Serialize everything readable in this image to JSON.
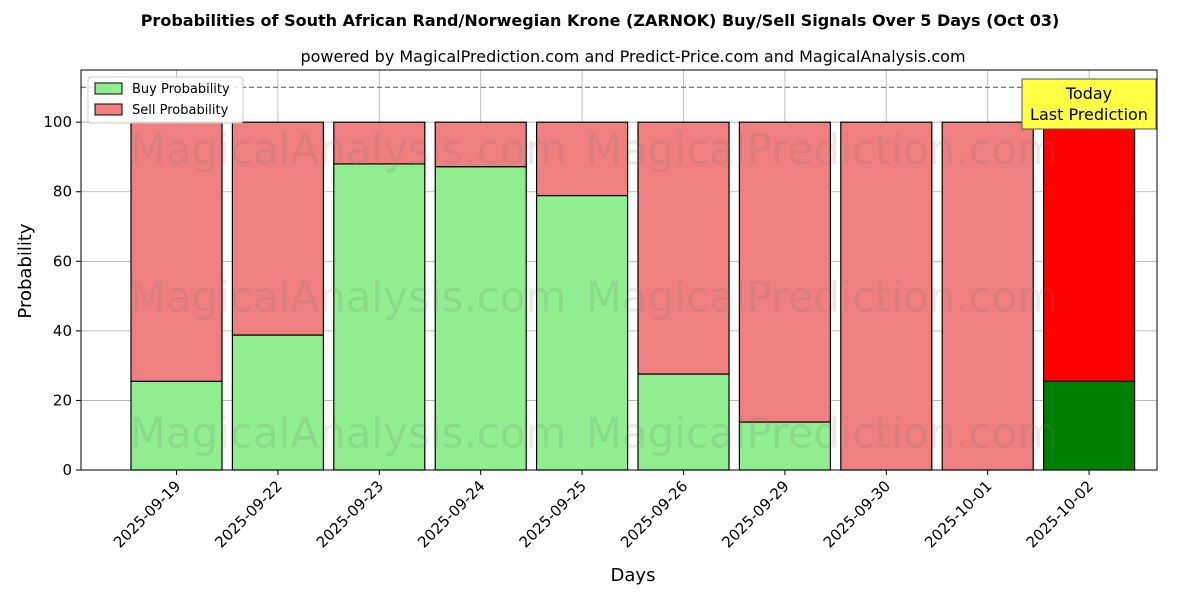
{
  "chart_data": {
    "type": "bar",
    "stacked": true,
    "title": "Probabilities of South African Rand/Norwegian Krone (ZARNOK) Buy/Sell Signals Over 5 Days (Oct 03)",
    "subtitle": "powered by MagicalPrediction.com and Predict-Price.com and MagicalAnalysis.com",
    "xlabel": "Days",
    "ylabel": "Probability",
    "ylim": [
      0,
      115
    ],
    "yticks": [
      0,
      20,
      40,
      60,
      80,
      100
    ],
    "grid": true,
    "legend_position": "top-left",
    "reference_line": 110,
    "categories": [
      "2025-09-19",
      "2025-09-22",
      "2025-09-23",
      "2025-09-24",
      "2025-09-25",
      "2025-09-26",
      "2025-09-29",
      "2025-09-30",
      "2025-10-01",
      "2025-10-02"
    ],
    "series": [
      {
        "name": "Buy Probability",
        "values": [
          25.5,
          38.8,
          88.0,
          87.2,
          78.9,
          27.6,
          13.8,
          0,
          0,
          25.5
        ]
      },
      {
        "name": "Sell Probability",
        "values": [
          74.5,
          61.2,
          12.0,
          12.8,
          21.1,
          72.4,
          86.2,
          100,
          100,
          74.5
        ]
      }
    ],
    "annotation": {
      "line1": "Today",
      "line2": "Last Prediction"
    },
    "watermarks": [
      "MagicalAnalysis.com",
      "MagicalPrediction.com"
    ]
  },
  "colors": {
    "buy": "#90ee90",
    "sell": "#f08080",
    "buy_highlight": "#008000",
    "sell_highlight": "#ff0000",
    "annotation_fill": "#ffff44",
    "grid": "#b0b0b0"
  }
}
